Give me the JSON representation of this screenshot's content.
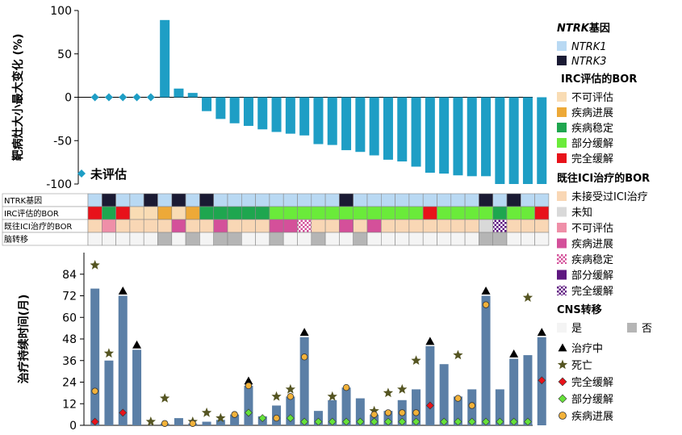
{
  "colors": {
    "bar_top": "#1e9ec5",
    "bar_bottom": "#5b7fa6",
    "ntrk1": "#b9d9f3",
    "ntrk3": "#1a1a33",
    "irc_ne": "#f9dcb4",
    "irc_pd": "#eda938",
    "irc_sd": "#1ea64f",
    "irc_pr": "#6aeb3a",
    "irc_cr": "#e8121a",
    "prior_none": "#f9d7b5",
    "prior_unknown": "#d9d9d9",
    "prior_ne": "#ef8fa8",
    "prior_pd": "#d4509a",
    "prior_pr": "#5e1780",
    "cns_yes": "#f4f4f4",
    "cns_no": "#b5b5b5",
    "star": "#555522",
    "diamond_cr": "#e8121a",
    "diamond_pr": "#66e23a",
    "circle_pd": "#f2b23a"
  },
  "legend": {
    "ntrk": {
      "title_italic": "NTRK",
      "title_rest": "基因",
      "items": [
        "NTRK1",
        "NTRK3"
      ]
    },
    "irc": {
      "title": "IRC评估的BOR",
      "items": [
        "不可评估",
        "疾病进展",
        "疾病稳定",
        "部分缓解",
        "完全缓解"
      ]
    },
    "prior": {
      "title": "既往ICI治疗的BOR",
      "items": [
        "未接受过ICI治疗",
        "未知",
        "不可评估",
        "疾病进展",
        "疾病稳定",
        "部分缓解",
        "完全缓解"
      ]
    },
    "cns": {
      "title": "CNS转移",
      "yes": "是",
      "no": "否"
    },
    "events": [
      "治疗中",
      "死亡",
      "完全缓解",
      "部分缓解",
      "疾病进展"
    ]
  },
  "track_labels": [
    "NTRK基因",
    "IRC评估的BOR",
    "既往ICI治疗的BOR",
    "脑转移"
  ],
  "chart_data": [
    {
      "type": "bar",
      "ylabel": "靶病灶大小最大变化 (%)",
      "ylim": [
        -100,
        100
      ],
      "yticks": [
        100,
        50,
        0,
        -50,
        -100
      ],
      "not_evaluated_label": "未评估",
      "not_evaluated_patients": [
        1,
        2,
        3,
        4,
        5
      ],
      "patients": [
        1,
        2,
        3,
        4,
        5,
        6,
        7,
        8,
        9,
        10,
        11,
        12,
        13,
        14,
        15,
        16,
        17,
        18,
        19,
        20,
        21,
        22,
        23,
        24,
        25,
        26,
        27,
        28,
        29,
        30,
        31,
        32,
        33
      ],
      "values": [
        null,
        null,
        null,
        null,
        null,
        89,
        10,
        5,
        -16,
        -25,
        -30,
        -33,
        -37,
        -40,
        -42,
        -44,
        -54,
        -55,
        -61,
        -63,
        -67,
        -72,
        -74,
        -80,
        -87,
        -88,
        -90,
        -91,
        -91,
        -100,
        -100,
        -100,
        -100
      ]
    },
    {
      "type": "heatmap",
      "rows": [
        "NTRK基因",
        "IRC评估的BOR",
        "既往ICI治疗的BOR",
        "脑转移"
      ],
      "ntrk": [
        "NTRK1",
        "NTRK3",
        "NTRK1",
        "NTRK1",
        "NTRK3",
        "NTRK1",
        "NTRK3",
        "NTRK1",
        "NTRK3",
        "NTRK1",
        "NTRK1",
        "NTRK1",
        "NTRK1",
        "NTRK1",
        "NTRK1",
        "NTRK1",
        "NTRK1",
        "NTRK1",
        "NTRK3",
        "NTRK1",
        "NTRK1",
        "NTRK1",
        "NTRK1",
        "NTRK1",
        "NTRK1",
        "NTRK1",
        "NTRK1",
        "NTRK1",
        "NTRK3",
        "NTRK1",
        "NTRK3",
        "NTRK1",
        "NTRK1"
      ],
      "irc_bor": [
        "完全缓解",
        "疾病稳定",
        "完全缓解",
        "不可评估",
        "不可评估",
        "疾病进展",
        "不可评估",
        "疾病进展",
        "疾病稳定",
        "疾病稳定",
        "疾病稳定",
        "疾病稳定",
        "疾病稳定",
        "部分缓解",
        "部分缓解",
        "部分缓解",
        "部分缓解",
        "部分缓解",
        "部分缓解",
        "部分缓解",
        "部分缓解",
        "部分缓解",
        "部分缓解",
        "部分缓解",
        "完全缓解",
        "部分缓解",
        "部分缓解",
        "部分缓解",
        "部分缓解",
        "疾病稳定",
        "部分缓解",
        "部分缓解",
        "完全缓解"
      ],
      "prior_ici_bor": [
        "未接受过ICI治疗",
        "不可评估",
        "未接受过ICI治疗",
        "未接受过ICI治疗",
        "未接受过ICI治疗",
        "未接受过ICI治疗",
        "疾病进展",
        "未接受过ICI治疗",
        "未接受过ICI治疗",
        "疾病进展",
        "未接受过ICI治疗",
        "未接受过ICI治疗",
        "未接受过ICI治疗",
        "疾病进展",
        "疾病进展",
        "疾病稳定",
        "未接受过ICI治疗",
        "未接受过ICI治疗",
        "疾病进展",
        "未接受过ICI治疗",
        "疾病进展",
        "未接受过ICI治疗",
        "未接受过ICI治疗",
        "未接受过ICI治疗",
        "未接受过ICI治疗",
        "未接受过ICI治疗",
        "未接受过ICI治疗",
        "未接受过ICI治疗",
        "未知",
        "完全缓解",
        "未接受过ICI治疗",
        "未接受过ICI治疗",
        "未接受过ICI治疗"
      ],
      "cns_metastasis": [
        "是",
        "是",
        "是",
        "是",
        "是",
        "否",
        "是",
        "否",
        "是",
        "否",
        "否",
        "是",
        "是",
        "否",
        "是",
        "是",
        "否",
        "是",
        "是",
        "否",
        "是",
        "是",
        "是",
        "是",
        "是",
        "是",
        "是",
        "是",
        "否",
        "否",
        "是",
        "是",
        "是"
      ]
    },
    {
      "type": "bar",
      "ylabel": "治疗持续时间(月)",
      "ylim": [
        0,
        96
      ],
      "yticks": [
        0,
        12,
        24,
        36,
        48,
        60,
        72,
        84
      ],
      "patients": [
        1,
        2,
        3,
        4,
        5,
        6,
        7,
        8,
        9,
        10,
        11,
        12,
        13,
        14,
        15,
        16,
        17,
        18,
        19,
        20,
        21,
        22,
        23,
        24,
        25,
        26,
        27,
        28,
        29,
        30,
        31,
        32,
        33
      ],
      "values": [
        76,
        36,
        72,
        42,
        0,
        1,
        4,
        1,
        2,
        3,
        6,
        22,
        5,
        11,
        16,
        49,
        8,
        14,
        21,
        15,
        6,
        8,
        14,
        20,
        44,
        34,
        16,
        20,
        72,
        20,
        37,
        39,
        49
      ],
      "on_treatment": [
        false,
        false,
        true,
        true,
        false,
        false,
        false,
        false,
        false,
        false,
        false,
        true,
        false,
        false,
        false,
        true,
        false,
        false,
        false,
        false,
        false,
        false,
        false,
        false,
        true,
        false,
        false,
        false,
        true,
        false,
        true,
        false,
        true
      ],
      "death": [
        89,
        40,
        null,
        null,
        2,
        15,
        null,
        2,
        7,
        4,
        null,
        null,
        null,
        16,
        20,
        null,
        null,
        16,
        null,
        null,
        8,
        18,
        20,
        36,
        null,
        null,
        39,
        null,
        null,
        null,
        null,
        71,
        null
      ],
      "complete_response": [
        2,
        null,
        7,
        null,
        null,
        null,
        null,
        null,
        null,
        null,
        null,
        null,
        null,
        null,
        null,
        null,
        null,
        null,
        null,
        null,
        null,
        null,
        null,
        null,
        11,
        null,
        null,
        null,
        null,
        null,
        null,
        null,
        25
      ],
      "partial_response": [
        null,
        null,
        null,
        null,
        null,
        null,
        null,
        null,
        null,
        null,
        null,
        7,
        4,
        null,
        4,
        2,
        2,
        2,
        2,
        2,
        2,
        2,
        2,
        2,
        null,
        2,
        2,
        2,
        2,
        2,
        2,
        2,
        null
      ],
      "progression": [
        19,
        null,
        null,
        null,
        null,
        1,
        null,
        1,
        null,
        null,
        6,
        22,
        null,
        4,
        16,
        38,
        null,
        null,
        21,
        null,
        6,
        7,
        7,
        7,
        null,
        null,
        15,
        11,
        67,
        null,
        null,
        null,
        null
      ]
    }
  ]
}
